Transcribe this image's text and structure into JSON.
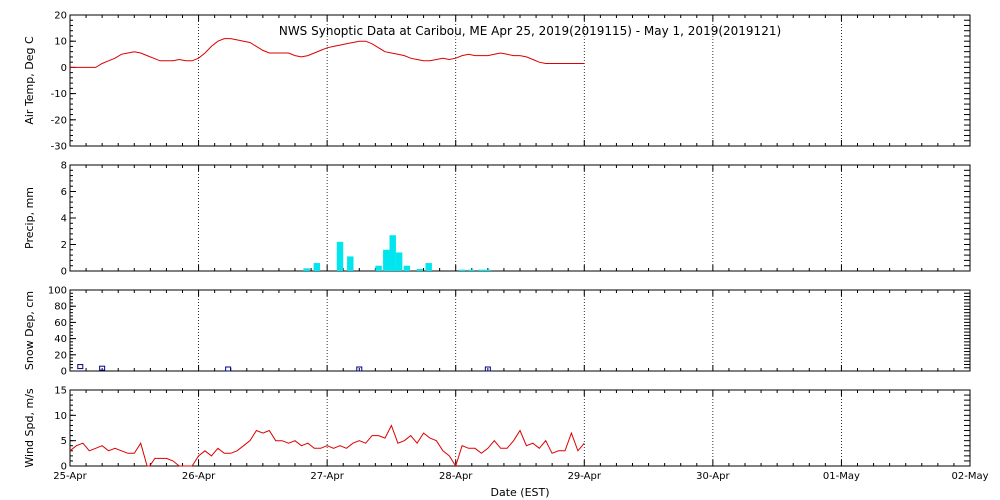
{
  "chart_data": {
    "type": "line",
    "title": "NWS Synoptic Data at Caribou, ME   Apr 25, 2019(2019115) - May  1, 2019(2019121)",
    "xlabel": "Date (EST)",
    "x_ticks": [
      "25-Apr",
      "26-Apr",
      "27-Apr",
      "28-Apr",
      "29-Apr",
      "30-Apr",
      "01-May",
      "02-May"
    ],
    "x_range_days": [
      0,
      7
    ],
    "grid": "dotted vertical at each day",
    "panels": [
      {
        "name": "air-temp",
        "ylabel": "Air Temp, Deg C",
        "ylim": [
          -30,
          20
        ],
        "yticks": [
          -30,
          -20,
          -10,
          0,
          10,
          20
        ],
        "series_type": "line",
        "color": "#dd0000",
        "x": [
          0,
          0.1,
          0.15,
          0.2,
          0.25,
          0.3,
          0.35,
          0.4,
          0.45,
          0.5,
          0.55,
          0.6,
          0.65,
          0.7,
          0.75,
          0.8,
          0.85,
          0.9,
          0.95,
          1.0,
          1.05,
          1.1,
          1.15,
          1.2,
          1.25,
          1.3,
          1.35,
          1.4,
          1.45,
          1.5,
          1.55,
          1.6,
          1.65,
          1.7,
          1.75,
          1.8,
          1.85,
          1.9,
          1.95,
          2.0,
          2.05,
          2.1,
          2.15,
          2.2,
          2.25,
          2.3,
          2.35,
          2.4,
          2.45,
          2.5,
          2.55,
          2.6,
          2.65,
          2.7,
          2.75,
          2.8,
          2.85,
          2.9,
          2.95,
          3.0,
          3.05,
          3.1,
          3.15,
          3.2,
          3.25,
          3.3,
          3.35,
          3.4,
          3.45,
          3.5,
          3.55,
          3.6,
          3.65,
          3.7,
          3.75,
          3.8,
          3.85,
          3.9,
          3.95,
          4.0
        ],
        "values": [
          0,
          0,
          0,
          0,
          1.5,
          2.5,
          3.5,
          5,
          5.5,
          6,
          5.5,
          4.5,
          3.5,
          2.5,
          2.5,
          2.5,
          3,
          2.5,
          2.5,
          3.5,
          5.5,
          8,
          10,
          11,
          11,
          10.5,
          10,
          9.5,
          8,
          6.5,
          5.5,
          5.5,
          5.5,
          5.5,
          4.5,
          4,
          4.5,
          5.5,
          6.5,
          7.5,
          8,
          8.5,
          9,
          9.5,
          10,
          10,
          9,
          7.5,
          6,
          5.5,
          5,
          4.5,
          3.5,
          3,
          2.5,
          2.5,
          3,
          3.5,
          3,
          3.5,
          4.5,
          5,
          4.5,
          4.5,
          4.5,
          5,
          5.5,
          5,
          4.5,
          4.5,
          4,
          3,
          2,
          1.5,
          1.5,
          1.5,
          1.5,
          1.5,
          1.5,
          1.5
        ]
      },
      {
        "name": "precip",
        "ylabel": "Precip, mm",
        "ylim": [
          0,
          8
        ],
        "yticks": [
          0,
          2,
          4,
          6,
          8
        ],
        "series_type": "bar",
        "color": "#00e5ee",
        "bar_width_days": 0.05,
        "x": [
          1.84,
          1.92,
          2.1,
          2.18,
          2.4,
          2.46,
          2.51,
          2.56,
          2.62,
          2.72,
          2.79,
          3.05,
          3.12,
          3.2,
          3.25
        ],
        "values": [
          0.2,
          0.6,
          2.2,
          1.1,
          0.4,
          1.6,
          2.7,
          1.4,
          0.4,
          0.15,
          0.6,
          0.1,
          0.1,
          0.1,
          0.1
        ]
      },
      {
        "name": "snow-depth",
        "ylabel": "Snow Dep, cm",
        "ylim": [
          0,
          100
        ],
        "yticks": [
          0,
          20,
          40,
          60,
          80,
          100
        ],
        "series_type": "marker",
        "color": "#00008b",
        "x": [
          0.08,
          0.25,
          1.23,
          2.25,
          3.25
        ],
        "values": [
          3,
          1,
          0,
          0,
          0
        ]
      },
      {
        "name": "wind-speed",
        "ylabel": "Wind Spd, m/s",
        "ylim": [
          0,
          15
        ],
        "yticks": [
          0,
          5,
          10,
          15
        ],
        "series_type": "line",
        "color": "#dd0000",
        "x": [
          0,
          0.05,
          0.1,
          0.15,
          0.2,
          0.25,
          0.3,
          0.35,
          0.4,
          0.45,
          0.5,
          0.55,
          0.6,
          0.62,
          0.66,
          0.7,
          0.75,
          0.8,
          0.85,
          0.9,
          0.95,
          1.0,
          1.05,
          1.1,
          1.15,
          1.2,
          1.25,
          1.3,
          1.35,
          1.4,
          1.45,
          1.5,
          1.55,
          1.6,
          1.65,
          1.7,
          1.75,
          1.8,
          1.85,
          1.9,
          1.95,
          2.0,
          2.05,
          2.1,
          2.15,
          2.2,
          2.25,
          2.3,
          2.35,
          2.4,
          2.45,
          2.5,
          2.55,
          2.6,
          2.65,
          2.7,
          2.75,
          2.8,
          2.85,
          2.9,
          2.95,
          3.0,
          3.05,
          3.1,
          3.15,
          3.2,
          3.25,
          3.3,
          3.35,
          3.4,
          3.45,
          3.5,
          3.55,
          3.6,
          3.65,
          3.7,
          3.75,
          3.8,
          3.85,
          3.9,
          3.95,
          4.0
        ],
        "values": [
          3,
          4,
          4.5,
          3,
          3.5,
          4,
          3,
          3.5,
          3,
          2.5,
          2.5,
          4.5,
          0,
          0,
          1.5,
          1.5,
          1.5,
          1,
          0,
          0,
          0,
          2,
          3,
          2,
          3.5,
          2.5,
          2.5,
          3,
          4,
          5,
          7,
          6.5,
          7,
          5,
          5,
          4.5,
          5,
          4,
          4.5,
          3.5,
          3.5,
          4,
          3.5,
          4,
          3.5,
          4.5,
          5,
          4.5,
          6,
          6,
          5.5,
          8,
          4.5,
          5,
          6,
          4.5,
          6.5,
          5.5,
          5,
          3,
          2,
          0,
          4,
          3.5,
          3.5,
          2.5,
          3.5,
          5,
          3.5,
          3.5,
          5,
          7,
          4,
          4.5,
          3.5,
          5,
          2.5,
          3,
          3,
          6.5,
          3,
          4.5
        ]
      }
    ]
  }
}
